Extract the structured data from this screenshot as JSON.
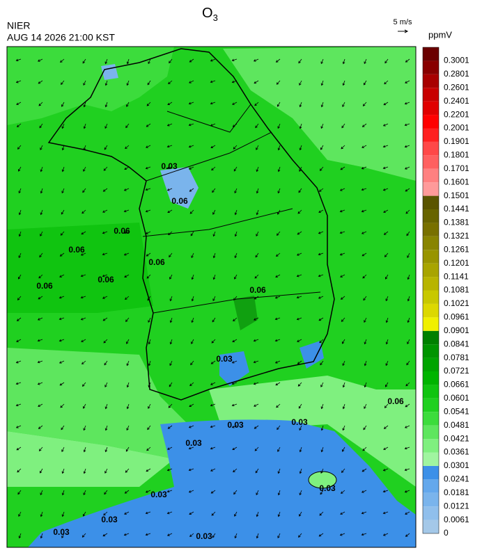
{
  "header": {
    "agency": "NIER",
    "datetime": "AUG 14 2026 21:00 KST",
    "title": "O",
    "title_subscript": "3",
    "wind_scale": "5 m/s"
  },
  "colorbar": {
    "unit": "ppmV",
    "levels": [
      0,
      0.0061,
      0.0121,
      0.0181,
      0.0241,
      0.0301,
      0.0361,
      0.0421,
      0.0481,
      0.0541,
      0.0601,
      0.0661,
      0.0721,
      0.0781,
      0.0841,
      0.0901,
      0.0961,
      0.1021,
      0.1081,
      0.1141,
      0.1201,
      0.1261,
      0.1321,
      0.1381,
      0.1441,
      0.1501,
      0.1601,
      0.1701,
      0.1801,
      0.1901,
      0.2001,
      0.2201,
      0.2401,
      0.2601,
      0.2801,
      0.3001
    ],
    "colors": [
      "#a4c8e8",
      "#90bfec",
      "#7ab4ec",
      "#64a8ec",
      "#3c90e8",
      "#a0f5a0",
      "#7ff07f",
      "#5ee65e",
      "#3cdc3c",
      "#20d020",
      "#10c410",
      "#00b400",
      "#00a400",
      "#009400",
      "#008000",
      "#f0f000",
      "#dcd800",
      "#c8c800",
      "#b8b400",
      "#a8a400",
      "#989400",
      "#888400",
      "#787000",
      "#686400",
      "#5a5400",
      "#ff9a9a",
      "#ff8080",
      "#ff6060",
      "#ff4848",
      "#ff2020",
      "#ff0000",
      "#e00000",
      "#c80000",
      "#a80000",
      "#880000",
      "#6a0000"
    ]
  },
  "contour_labels": [
    "0.03",
    "0.06",
    "0.06",
    "0.06",
    "0.06",
    "0.06",
    "0.06",
    "0.06",
    "0.03",
    "0.03",
    "0.03",
    "0.03",
    "0.03",
    "0.03",
    "0.03",
    "0.03",
    "0.03",
    "0.06"
  ]
}
